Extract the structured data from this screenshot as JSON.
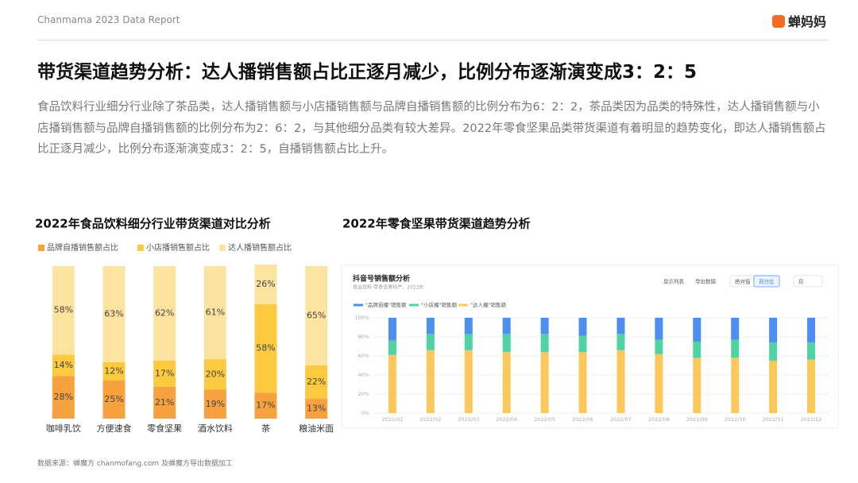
{
  "header": {
    "report": "Chanmama 2023 Data Report",
    "logo": "蝉妈妈"
  },
  "title": "带货渠道趋势分析：达人播销售额占比正逐月减少，比例分布逐渐演变成3：2：5",
  "paragraph": "食品饮料行业细分行业除了茶品类，达人播销售额与小店播销售额与品牌自播销售额的比例分布为6：2：2，茶品类因为品类的特殊性，达人播销售额与小店播销售额与品牌自播销售额的比例分布为2：6：2，与其他细分品类有较大差异。2022年零食坚果品类带货渠道有着明显的趋势变化，即达人播销售额占比正逐月减少，比例分布逐渐演变成3：2：5，自播销售额占比上升。",
  "source": "数据来源：蝉魔方 chanmofang.com 及蝉魔方导出数据加工",
  "chart_data": [
    {
      "type": "stacked-bar",
      "title": "2022年食品饮料细分行业带货渠道对比分析",
      "categories": [
        "咖啡乳饮",
        "方便速食",
        "零食坚果",
        "酒水饮料",
        "茶",
        "粮油米面"
      ],
      "series": [
        {
          "name": "品牌自播销售额占比",
          "color": "#f7a23e",
          "values": [
            28,
            25,
            21,
            19,
            17,
            13
          ],
          "value_labels": [
            "28%",
            "25%",
            "21%",
            "19%",
            "17%",
            "13%"
          ]
        },
        {
          "name": "小店播销售额占比",
          "color": "#fcca3f",
          "values": [
            14,
            12,
            17,
            20,
            58,
            22
          ],
          "value_labels": [
            "14%",
            "12%",
            "17%",
            "20%",
            "58%",
            "22%"
          ]
        },
        {
          "name": "达人播销售额占比",
          "color": "#fde3a0",
          "values": [
            58,
            63,
            62,
            61,
            26,
            65
          ],
          "value_labels": [
            "58%",
            "63%",
            "62%",
            "61%",
            "26%",
            "65%"
          ]
        }
      ]
    },
    {
      "type": "stacked-bar",
      "title": "2022年零食坚果带货渠道趋势分析",
      "panel_title": "抖音号销售额分析",
      "panel_subtitle": "食品饮料-零食坚果特产，2022年",
      "buttons": [
        "显示列表",
        "导出数据",
        "绝对值",
        "百分比",
        "月"
      ],
      "categories": [
        "2022/01",
        "2022/02",
        "2022/03",
        "2022/04",
        "2022/05",
        "2022/06",
        "2022/07",
        "2022/08",
        "2022/09",
        "2022/10",
        "2022/11",
        "2022/12"
      ],
      "series": [
        {
          "name": "\"品牌自播\"销售额",
          "color": "#4e8ef0",
          "values": [
            24,
            17,
            17,
            17,
            17,
            19,
            17,
            23,
            25,
            23,
            26,
            26
          ]
        },
        {
          "name": "\"小店播\"销售额",
          "color": "#4fd3a2",
          "values": [
            15,
            17,
            17,
            19,
            19,
            17,
            17,
            15,
            17,
            19,
            19,
            18
          ]
        },
        {
          "name": "\"达人播\"销售额",
          "color": "#fcc85c",
          "values": [
            61,
            66,
            66,
            64,
            64,
            64,
            66,
            62,
            58,
            58,
            55,
            56
          ]
        }
      ],
      "ylim": [
        0,
        100
      ],
      "yticks": [
        {
          "value": 0,
          "label": "0%"
        },
        {
          "value": 20,
          "label": "20%"
        },
        {
          "value": 40,
          "label": "40%"
        },
        {
          "value": 60,
          "label": "60%"
        },
        {
          "value": 80,
          "label": "80%"
        },
        {
          "value": 100,
          "label": "100%"
        }
      ],
      "grid": true
    }
  ]
}
